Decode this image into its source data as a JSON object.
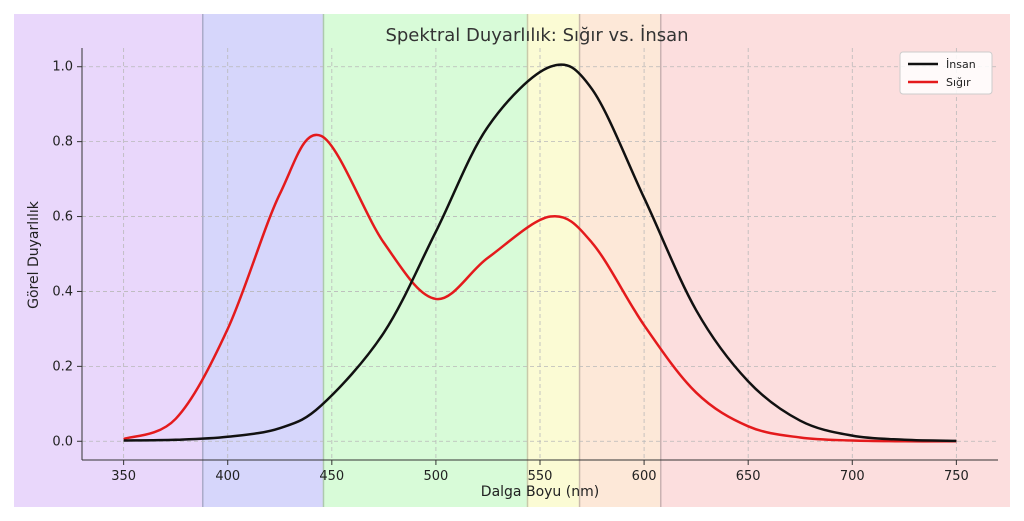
{
  "chart_data": {
    "type": "line",
    "title": "Spektral Duyarlılık: Sığır vs. İnsan",
    "xlabel": "Dalga Boyu (nm)",
    "ylabel": "Görel Duyarlılık",
    "xlim": [
      330,
      770
    ],
    "ylim": [
      -0.05,
      1.05
    ],
    "x_ticks": [
      350,
      400,
      450,
      500,
      550,
      600,
      650,
      700,
      750
    ],
    "y_ticks": [
      0.0,
      0.2,
      0.4,
      0.6,
      0.8,
      1.0
    ],
    "x_tick_labels": [
      "350",
      "400",
      "450",
      "500",
      "550",
      "600",
      "650",
      "700",
      "750"
    ],
    "y_tick_labels": [
      "0.0",
      "0.2",
      "0.4",
      "0.6",
      "0.8",
      "1.0"
    ],
    "grid": true,
    "legend_position": "top-right",
    "color_bands": [
      {
        "from": 330,
        "to": 388,
        "color": "#e9d7fb"
      },
      {
        "from": 388,
        "to": 446,
        "color": "#d6d6fb"
      },
      {
        "from": 446,
        "to": 544,
        "color": "#d8fbd8"
      },
      {
        "from": 544,
        "to": 569,
        "color": "#fbfbd4"
      },
      {
        "from": 569,
        "to": 608,
        "color": "#fde8d8"
      },
      {
        "from": 608,
        "to": 770,
        "color": "#fcdede"
      }
    ],
    "x": [
      350,
      375,
      400,
      425,
      445,
      475,
      500,
      525,
      555,
      575,
      600,
      625,
      650,
      675,
      700,
      725,
      750
    ],
    "series": [
      {
        "name": "İnsan",
        "color": "#111111",
        "values": [
          0.002,
          0.004,
          0.012,
          0.035,
          0.096,
          0.29,
          0.56,
          0.84,
          1.0,
          0.94,
          0.65,
          0.35,
          0.16,
          0.055,
          0.015,
          0.004,
          0.001
        ]
      },
      {
        "name": "Sığır",
        "color": "#e41a1c",
        "values": [
          0.006,
          0.06,
          0.3,
          0.66,
          0.815,
          0.53,
          0.38,
          0.49,
          0.6,
          0.53,
          0.31,
          0.13,
          0.04,
          0.01,
          0.002,
          0.0,
          0.0
        ]
      }
    ]
  }
}
